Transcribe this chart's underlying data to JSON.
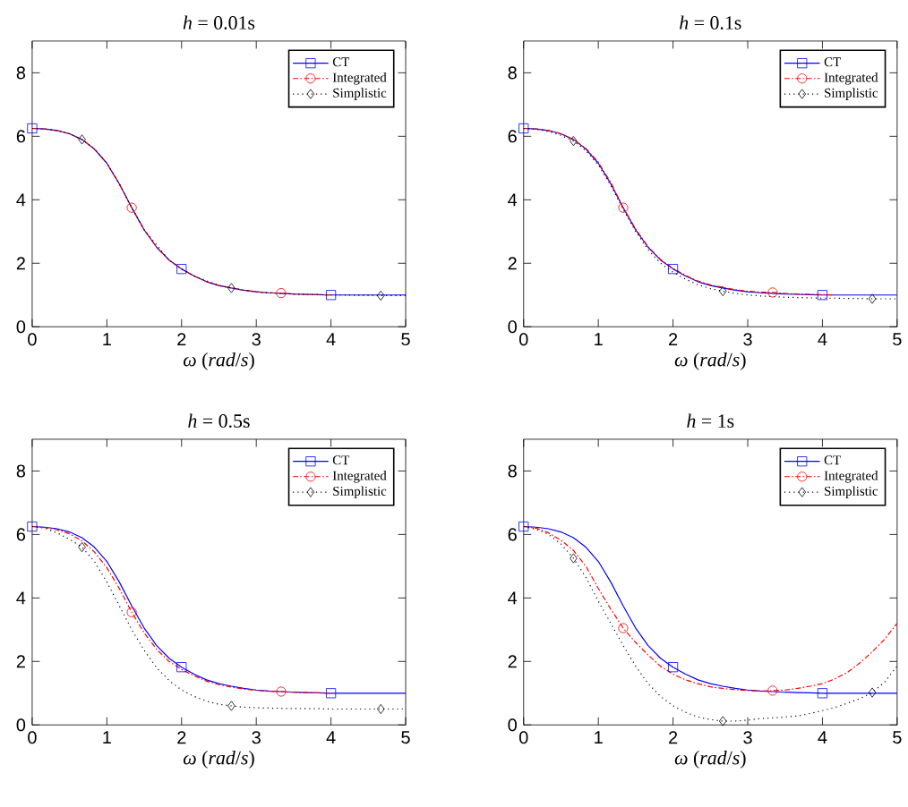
{
  "chart_data": [
    {
      "type": "line",
      "title": "*h* = 0.01s",
      "xlabel": "*ω* (*rad*/*s*)",
      "xlim": [
        0,
        5
      ],
      "ylim": [
        0,
        9
      ],
      "xticks": [
        0,
        1,
        2,
        3,
        4,
        5
      ],
      "yticks": [
        0,
        2,
        4,
        6,
        8
      ],
      "legend": "top right",
      "x": [
        0,
        0.167,
        0.333,
        0.5,
        0.667,
        0.833,
        1,
        1.167,
        1.333,
        1.5,
        1.667,
        1.833,
        2,
        2.167,
        2.333,
        2.5,
        2.667,
        2.833,
        3,
        3.167,
        3.333,
        3.5,
        3.667,
        3.833,
        4,
        4.167,
        4.333,
        4.5,
        4.667,
        4.833,
        5
      ],
      "series": [
        {
          "name": "CT",
          "color": "#0000ff",
          "line_style": "solid",
          "values": [
            6.25,
            6.23,
            6.18,
            6.08,
            5.9,
            5.6,
            5.15,
            4.5,
            3.75,
            3.05,
            2.5,
            2.1,
            1.82,
            1.6,
            1.42,
            1.3,
            1.22,
            1.15,
            1.1,
            1.07,
            1.05,
            1.03,
            1.02,
            1.01,
            1.0,
            1.0,
            1.0,
            1.0,
            1.0,
            1.0,
            1.0
          ]
        },
        {
          "type": "scatter",
          "color": "#0000ff",
          "marker": "square",
          "x": [
            0,
            2,
            4
          ],
          "values": [
            6.25,
            1.82,
            1.0
          ]
        },
        {
          "name": "Integrated",
          "color": "#ff0000",
          "line_style": "dashed",
          "values": [
            6.25,
            6.23,
            6.18,
            6.08,
            5.9,
            5.6,
            5.15,
            4.5,
            3.75,
            3.05,
            2.5,
            2.1,
            1.82,
            1.6,
            1.42,
            1.3,
            1.22,
            1.15,
            1.1,
            1.07,
            1.06,
            1.03,
            1.02,
            1.01,
            1.0,
            null,
            null,
            null,
            null,
            null,
            null
          ]
        },
        {
          "type": "scatter",
          "color": "#ff0000",
          "marker": "circle",
          "x": [
            1.333,
            3.333
          ],
          "values": [
            3.75,
            1.06
          ]
        },
        {
          "name": "Simplistic",
          "color": "#000000",
          "line_style": "dotted",
          "values": [
            6.25,
            6.23,
            6.18,
            6.08,
            5.9,
            5.6,
            5.15,
            4.5,
            3.75,
            3.05,
            null,
            2.1,
            1.82,
            1.6,
            null,
            1.3,
            1.22,
            1.15,
            1.1,
            1.07,
            1.05,
            1.03,
            1.02,
            1.01,
            1.0,
            1.0,
            0.99,
            0.99,
            0.98,
            0.98,
            0.98
          ]
        },
        {
          "type": "scatter",
          "color": "#000000",
          "marker": "diamond",
          "x": [
            0.667,
            2.667,
            4.667
          ],
          "values": [
            5.9,
            1.22,
            0.98
          ]
        }
      ]
    },
    {
      "type": "line",
      "title": "*h* = 0.1s",
      "xlabel": "*ω* (*rad*/*s*)",
      "xlim": [
        0,
        5
      ],
      "ylim": [
        0,
        9
      ],
      "xticks": [
        0,
        1,
        2,
        3,
        4,
        5
      ],
      "yticks": [
        0,
        2,
        4,
        6,
        8
      ],
      "legend": "top right",
      "x": [
        0,
        0.167,
        0.333,
        0.5,
        0.667,
        0.833,
        1,
        1.167,
        1.333,
        1.5,
        1.667,
        1.833,
        2,
        2.167,
        2.333,
        2.5,
        2.667,
        2.833,
        3,
        3.167,
        3.333,
        3.5,
        3.667,
        3.833,
        4,
        4.167,
        4.333,
        4.5,
        4.667,
        4.833,
        5
      ],
      "series": [
        {
          "name": "CT",
          "color": "#0000ff",
          "line_style": "solid",
          "values": [
            6.25,
            6.23,
            6.18,
            6.08,
            5.9,
            5.6,
            5.15,
            4.5,
            3.75,
            3.05,
            2.5,
            2.1,
            1.82,
            1.6,
            1.42,
            1.3,
            1.22,
            1.15,
            1.1,
            1.07,
            1.05,
            1.03,
            1.02,
            1.01,
            1.0,
            1.0,
            1.0,
            1.0,
            1.0,
            1.0,
            1.0
          ]
        },
        {
          "type": "scatter",
          "color": "#0000ff",
          "marker": "square",
          "x": [
            0,
            2,
            4
          ],
          "values": [
            6.25,
            1.82,
            1.0
          ]
        },
        {
          "name": "Integrated",
          "color": "#ff0000",
          "line_style": "dashed",
          "values": [
            6.25,
            6.23,
            6.18,
            6.08,
            5.9,
            5.62,
            5.18,
            4.55,
            3.75,
            3.08,
            2.52,
            2.12,
            1.84,
            1.62,
            1.44,
            1.32,
            1.24,
            1.17,
            1.12,
            1.09,
            1.08,
            1.05,
            1.03,
            1.02,
            1.01,
            1.0,
            null,
            null,
            null,
            null,
            null
          ]
        },
        {
          "type": "scatter",
          "color": "#ff0000",
          "marker": "circle",
          "x": [
            1.333,
            3.333
          ],
          "values": [
            3.75,
            1.08
          ]
        },
        {
          "name": "Simplistic",
          "color": "#000000",
          "line_style": "dotted",
          "values": [
            6.25,
            6.22,
            6.15,
            6.03,
            5.85,
            5.55,
            5.1,
            4.45,
            3.7,
            3.0,
            2.42,
            2.0,
            1.72,
            1.5,
            1.32,
            1.2,
            1.12,
            1.05,
            1.0,
            0.97,
            0.95,
            0.93,
            0.92,
            0.91,
            0.9,
            0.9,
            0.89,
            0.89,
            0.88,
            0.88,
            0.88
          ]
        },
        {
          "type": "scatter",
          "color": "#000000",
          "marker": "diamond",
          "x": [
            0.667,
            2.667,
            4.667
          ],
          "values": [
            5.85,
            1.12,
            0.88
          ]
        }
      ]
    },
    {
      "type": "line",
      "title": "*h* = 0.5s",
      "xlabel": "*ω* (*rad*/*s*)",
      "xlim": [
        0,
        5
      ],
      "ylim": [
        0,
        9
      ],
      "xticks": [
        0,
        1,
        2,
        3,
        4,
        5
      ],
      "yticks": [
        0,
        2,
        4,
        6,
        8
      ],
      "legend": "top right",
      "x": [
        0,
        0.167,
        0.333,
        0.5,
        0.667,
        0.833,
        1,
        1.167,
        1.333,
        1.5,
        1.667,
        1.833,
        2,
        2.167,
        2.333,
        2.5,
        2.667,
        2.833,
        3,
        3.167,
        3.333,
        3.5,
        3.667,
        3.833,
        4,
        4.167,
        4.333,
        4.5,
        4.667,
        4.833,
        5
      ],
      "series": [
        {
          "name": "CT",
          "color": "#0000ff",
          "line_style": "solid",
          "values": [
            6.25,
            6.23,
            6.18,
            6.08,
            5.9,
            5.6,
            5.15,
            4.5,
            3.75,
            3.05,
            2.5,
            2.1,
            1.82,
            1.6,
            1.42,
            1.3,
            1.22,
            1.15,
            1.1,
            1.07,
            1.05,
            1.03,
            1.02,
            1.01,
            1.0,
            1.0,
            1.0,
            1.0,
            1.0,
            1.0,
            1.0
          ]
        },
        {
          "type": "scatter",
          "color": "#0000ff",
          "marker": "square",
          "x": [
            0,
            2,
            4
          ],
          "values": [
            6.25,
            1.82,
            1.0
          ]
        },
        {
          "name": "Integrated",
          "color": "#ff0000",
          "line_style": "dashed",
          "values": [
            6.25,
            6.22,
            6.15,
            6.02,
            5.8,
            5.45,
            4.95,
            4.3,
            3.55,
            2.9,
            2.38,
            2.0,
            1.75,
            1.55,
            1.38,
            1.27,
            1.19,
            1.13,
            1.09,
            1.06,
            1.05,
            1.03,
            1.02,
            1.01,
            1.0,
            null,
            null,
            null,
            null,
            null,
            null
          ]
        },
        {
          "type": "scatter",
          "color": "#ff0000",
          "marker": "circle",
          "x": [
            1.333,
            3.333
          ],
          "values": [
            3.55,
            1.05
          ]
        },
        {
          "name": "Simplistic",
          "color": "#000000",
          "line_style": "dotted",
          "values": [
            6.25,
            6.2,
            6.05,
            5.85,
            5.6,
            5.15,
            4.5,
            3.75,
            3.0,
            2.35,
            1.8,
            1.4,
            1.1,
            0.9,
            0.75,
            0.65,
            0.6,
            0.56,
            0.54,
            0.53,
            0.52,
            0.52,
            0.51,
            0.51,
            0.5,
            0.5,
            0.5,
            0.5,
            0.5,
            0.5,
            0.5
          ]
        },
        {
          "type": "scatter",
          "color": "#000000",
          "marker": "diamond",
          "x": [
            0.667,
            2.667,
            4.667
          ],
          "values": [
            5.6,
            0.6,
            0.5
          ]
        }
      ]
    },
    {
      "type": "line",
      "title": "*h* = 1s",
      "xlabel": "*ω* (*rad*/*s*)",
      "xlim": [
        0,
        5
      ],
      "ylim": [
        0,
        9
      ],
      "xticks": [
        0,
        1,
        2,
        3,
        4,
        5
      ],
      "yticks": [
        0,
        2,
        4,
        6,
        8
      ],
      "legend": "top right",
      "x": [
        0,
        0.167,
        0.333,
        0.5,
        0.667,
        0.833,
        1,
        1.167,
        1.333,
        1.5,
        1.667,
        1.833,
        2,
        2.167,
        2.333,
        2.5,
        2.667,
        2.833,
        3,
        3.167,
        3.333,
        3.5,
        3.667,
        3.833,
        4,
        4.167,
        4.333,
        4.5,
        4.667,
        4.833,
        5
      ],
      "series": [
        {
          "name": "CT",
          "color": "#0000ff",
          "line_style": "solid",
          "values": [
            6.25,
            6.23,
            6.18,
            6.08,
            5.9,
            5.6,
            5.15,
            4.5,
            3.75,
            3.05,
            2.5,
            2.1,
            1.82,
            1.6,
            1.42,
            1.3,
            1.22,
            1.15,
            1.1,
            1.07,
            1.05,
            1.03,
            1.02,
            1.01,
            1.0,
            1.0,
            1.0,
            1.0,
            1.0,
            1.0,
            1.0
          ]
        },
        {
          "type": "scatter",
          "color": "#0000ff",
          "marker": "square",
          "x": [
            0,
            2,
            4
          ],
          "values": [
            6.25,
            1.82,
            1.0
          ]
        },
        {
          "name": "Integrated",
          "color": "#ff0000",
          "line_style": "dashed",
          "values": [
            6.25,
            6.2,
            6.05,
            5.82,
            5.5,
            5.0,
            4.3,
            3.65,
            3.05,
            2.6,
            2.2,
            1.85,
            1.6,
            1.42,
            1.3,
            1.2,
            1.15,
            1.11,
            1.08,
            1.07,
            1.08,
            1.1,
            1.15,
            1.22,
            1.3,
            1.45,
            1.65,
            1.95,
            2.3,
            2.7,
            3.2
          ]
        },
        {
          "type": "scatter",
          "color": "#ff0000",
          "marker": "circle",
          "x": [
            1.333,
            3.333
          ],
          "values": [
            3.05,
            1.08
          ]
        },
        {
          "name": "Simplistic",
          "color": "#000000",
          "line_style": "dotted",
          "values": [
            6.25,
            6.17,
            6.0,
            5.7,
            5.25,
            4.65,
            3.9,
            3.2,
            2.5,
            1.85,
            1.3,
            0.9,
            0.6,
            0.4,
            0.25,
            0.17,
            0.12,
            0.12,
            0.15,
            0.2,
            0.22,
            0.25,
            0.28,
            0.36,
            0.45,
            0.55,
            0.68,
            0.83,
            1.02,
            1.35,
            1.85
          ]
        },
        {
          "type": "scatter",
          "color": "#000000",
          "marker": "diamond",
          "x": [
            0.667,
            2.667,
            4.667
          ],
          "values": [
            5.25,
            0.12,
            1.02
          ]
        }
      ]
    }
  ]
}
